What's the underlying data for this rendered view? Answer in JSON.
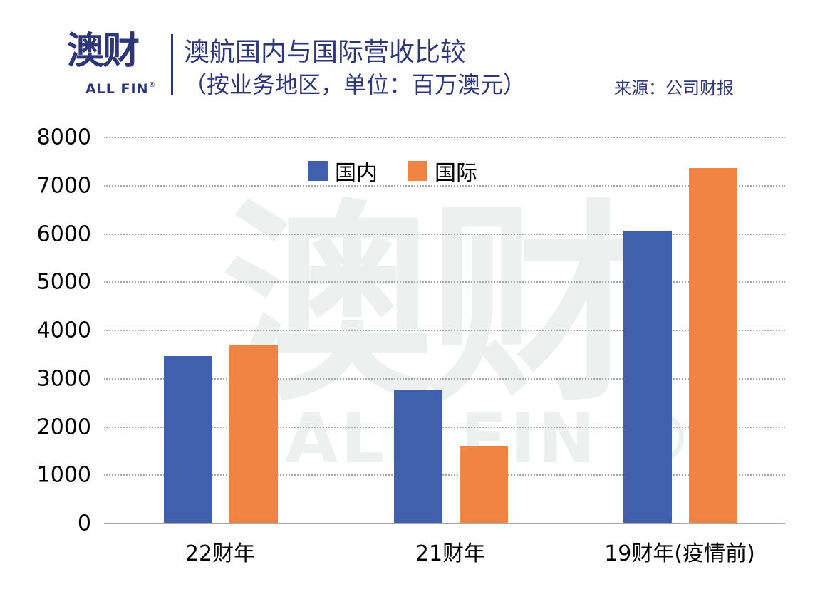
{
  "header": {
    "logo_cn": "澳财",
    "logo_en": "ALL FIN",
    "logo_reg": "®",
    "title_line1": "澳航国内与国际营收比较",
    "title_line2": "（按业务地区，单位：百万澳元）",
    "source": "来源：公司财报"
  },
  "watermark": {
    "cn": "澳财",
    "en": "ALL FIN ®"
  },
  "colors": {
    "domestic": "#4160ab",
    "international": "#ef8444",
    "brand": "#2e3676"
  },
  "chart_data": {
    "type": "bar",
    "title": "澳航国内与国际营收比较（按业务地区，单位：百万澳元）",
    "categories": [
      "22财年",
      "21财年",
      "19财年(疫情前)"
    ],
    "series": [
      {
        "name": "国内",
        "values": [
          3470,
          2760,
          6070
        ]
      },
      {
        "name": "国际",
        "values": [
          3690,
          1610,
          7365
        ]
      }
    ],
    "xlabel": "",
    "ylabel": "百万澳元",
    "ylim": [
      0,
      8000
    ],
    "yticks": [
      "0",
      "1000",
      "2000",
      "3000",
      "4000",
      "5000",
      "6000",
      "7000",
      "8000"
    ],
    "grid": true,
    "legend_position": "top-center",
    "annotations": [
      "来源：公司财报"
    ]
  }
}
